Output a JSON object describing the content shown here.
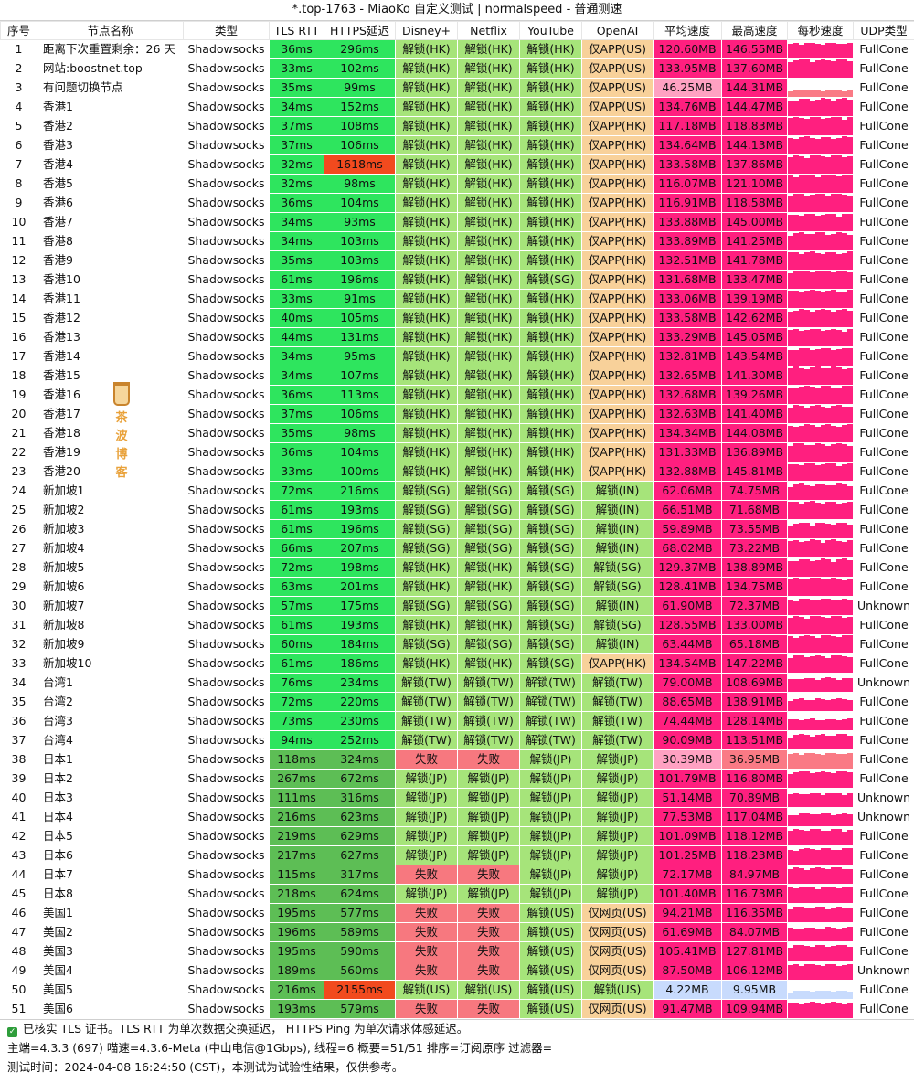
{
  "window": {
    "title": "*.top-1763 - MiaoKo 自定义测试 | normalspeed - 普通测速"
  },
  "watermark": {
    "line1": "茶 波",
    "line2": "博 客"
  },
  "colors": {
    "green": "#2ee55e",
    "green_dark": "#5dbe55",
    "red": "#f24a1e",
    "unlock": "#a6e47a",
    "fail": "#f7787f",
    "app": "#f8d19a",
    "speed": "#ff1f7f",
    "speed_light": "#ffa1c2",
    "speed_low": "#c8dbfd",
    "speed_mid": "#fa7a85",
    "bar": "#ff1f7f",
    "white": "#ffffff"
  },
  "table": {
    "columns": [
      "序号",
      "节点名称",
      "类型",
      "TLS RTT",
      "HTTPS延迟",
      "Disney+",
      "Netflix",
      "YouTube",
      "OpenAI",
      "平均速度",
      "最高速度",
      "每秒速度",
      "UDP类型"
    ],
    "rows": [
      [
        "1",
        "距离下次重置剩余：26 天",
        "Shadowsocks",
        "36ms",
        "296ms",
        "解锁(HK)",
        "解锁(HK)",
        "解锁(HK)",
        "仅APP(US)",
        "120.60MB",
        "146.55MB",
        "",
        "FullCone"
      ],
      [
        "2",
        "网站:boostnet.top",
        "Shadowsocks",
        "33ms",
        "102ms",
        "解锁(HK)",
        "解锁(HK)",
        "解锁(HK)",
        "仅APP(US)",
        "133.95MB",
        "137.60MB",
        "",
        "FullCone"
      ],
      [
        "3",
        "有问题切换节点",
        "Shadowsocks",
        "35ms",
        "99ms",
        "解锁(HK)",
        "解锁(HK)",
        "解锁(HK)",
        "仅APP(US)",
        "46.25MB",
        "144.31MB",
        "",
        "FullCone"
      ],
      [
        "4",
        "香港1",
        "Shadowsocks",
        "34ms",
        "152ms",
        "解锁(HK)",
        "解锁(HK)",
        "解锁(HK)",
        "仅APP(US)",
        "134.76MB",
        "144.47MB",
        "",
        "FullCone"
      ],
      [
        "5",
        "香港2",
        "Shadowsocks",
        "37ms",
        "108ms",
        "解锁(HK)",
        "解锁(HK)",
        "解锁(HK)",
        "仅APP(HK)",
        "117.18MB",
        "118.83MB",
        "",
        "FullCone"
      ],
      [
        "6",
        "香港3",
        "Shadowsocks",
        "37ms",
        "106ms",
        "解锁(HK)",
        "解锁(HK)",
        "解锁(HK)",
        "仅APP(HK)",
        "134.64MB",
        "144.13MB",
        "",
        "FullCone"
      ],
      [
        "7",
        "香港4",
        "Shadowsocks",
        "32ms",
        "1618ms",
        "解锁(HK)",
        "解锁(HK)",
        "解锁(HK)",
        "仅APP(HK)",
        "133.58MB",
        "137.86MB",
        "",
        "FullCone"
      ],
      [
        "8",
        "香港5",
        "Shadowsocks",
        "32ms",
        "98ms",
        "解锁(HK)",
        "解锁(HK)",
        "解锁(HK)",
        "仅APP(HK)",
        "116.07MB",
        "121.10MB",
        "",
        "FullCone"
      ],
      [
        "9",
        "香港6",
        "Shadowsocks",
        "36ms",
        "104ms",
        "解锁(HK)",
        "解锁(HK)",
        "解锁(HK)",
        "仅APP(HK)",
        "116.91MB",
        "118.58MB",
        "",
        "FullCone"
      ],
      [
        "10",
        "香港7",
        "Shadowsocks",
        "34ms",
        "93ms",
        "解锁(HK)",
        "解锁(HK)",
        "解锁(HK)",
        "仅APP(HK)",
        "133.88MB",
        "145.00MB",
        "",
        "FullCone"
      ],
      [
        "11",
        "香港8",
        "Shadowsocks",
        "34ms",
        "103ms",
        "解锁(HK)",
        "解锁(HK)",
        "解锁(HK)",
        "仅APP(HK)",
        "133.89MB",
        "141.25MB",
        "",
        "FullCone"
      ],
      [
        "12",
        "香港9",
        "Shadowsocks",
        "35ms",
        "103ms",
        "解锁(HK)",
        "解锁(HK)",
        "解锁(HK)",
        "仅APP(HK)",
        "132.51MB",
        "141.78MB",
        "",
        "FullCone"
      ],
      [
        "13",
        "香港10",
        "Shadowsocks",
        "61ms",
        "196ms",
        "解锁(HK)",
        "解锁(HK)",
        "解锁(SG)",
        "仅APP(HK)",
        "131.68MB",
        "133.47MB",
        "",
        "FullCone"
      ],
      [
        "14",
        "香港11",
        "Shadowsocks",
        "33ms",
        "91ms",
        "解锁(HK)",
        "解锁(HK)",
        "解锁(HK)",
        "仅APP(HK)",
        "133.06MB",
        "139.19MB",
        "",
        "FullCone"
      ],
      [
        "15",
        "香港12",
        "Shadowsocks",
        "40ms",
        "105ms",
        "解锁(HK)",
        "解锁(HK)",
        "解锁(HK)",
        "仅APP(HK)",
        "133.58MB",
        "142.62MB",
        "",
        "FullCone"
      ],
      [
        "16",
        "香港13",
        "Shadowsocks",
        "44ms",
        "131ms",
        "解锁(HK)",
        "解锁(HK)",
        "解锁(HK)",
        "仅APP(HK)",
        "133.29MB",
        "145.05MB",
        "",
        "FullCone"
      ],
      [
        "17",
        "香港14",
        "Shadowsocks",
        "34ms",
        "95ms",
        "解锁(HK)",
        "解锁(HK)",
        "解锁(HK)",
        "仅APP(HK)",
        "132.81MB",
        "143.54MB",
        "",
        "FullCone"
      ],
      [
        "18",
        "香港15",
        "Shadowsocks",
        "34ms",
        "107ms",
        "解锁(HK)",
        "解锁(HK)",
        "解锁(HK)",
        "仅APP(HK)",
        "132.65MB",
        "141.30MB",
        "",
        "FullCone"
      ],
      [
        "19",
        "香港16",
        "Shadowsocks",
        "36ms",
        "113ms",
        "解锁(HK)",
        "解锁(HK)",
        "解锁(HK)",
        "仅APP(HK)",
        "132.68MB",
        "139.26MB",
        "",
        "FullCone"
      ],
      [
        "20",
        "香港17",
        "Shadowsocks",
        "37ms",
        "106ms",
        "解锁(HK)",
        "解锁(HK)",
        "解锁(HK)",
        "仅APP(HK)",
        "132.63MB",
        "141.40MB",
        "",
        "FullCone"
      ],
      [
        "21",
        "香港18",
        "Shadowsocks",
        "35ms",
        "98ms",
        "解锁(HK)",
        "解锁(HK)",
        "解锁(HK)",
        "仅APP(HK)",
        "134.34MB",
        "144.08MB",
        "",
        "FullCone"
      ],
      [
        "22",
        "香港19",
        "Shadowsocks",
        "36ms",
        "104ms",
        "解锁(HK)",
        "解锁(HK)",
        "解锁(HK)",
        "仅APP(HK)",
        "131.33MB",
        "136.89MB",
        "",
        "FullCone"
      ],
      [
        "23",
        "香港20",
        "Shadowsocks",
        "33ms",
        "100ms",
        "解锁(HK)",
        "解锁(HK)",
        "解锁(HK)",
        "仅APP(HK)",
        "132.88MB",
        "145.81MB",
        "",
        "FullCone"
      ],
      [
        "24",
        "新加坡1",
        "Shadowsocks",
        "72ms",
        "216ms",
        "解锁(SG)",
        "解锁(SG)",
        "解锁(SG)",
        "解锁(IN)",
        "62.06MB",
        "74.75MB",
        "",
        "FullCone"
      ],
      [
        "25",
        "新加坡2",
        "Shadowsocks",
        "61ms",
        "193ms",
        "解锁(SG)",
        "解锁(SG)",
        "解锁(SG)",
        "解锁(IN)",
        "66.51MB",
        "71.68MB",
        "",
        "FullCone"
      ],
      [
        "26",
        "新加坡3",
        "Shadowsocks",
        "61ms",
        "196ms",
        "解锁(SG)",
        "解锁(SG)",
        "解锁(SG)",
        "解锁(IN)",
        "59.89MB",
        "73.55MB",
        "",
        "FullCone"
      ],
      [
        "27",
        "新加坡4",
        "Shadowsocks",
        "66ms",
        "207ms",
        "解锁(SG)",
        "解锁(SG)",
        "解锁(SG)",
        "解锁(IN)",
        "68.02MB",
        "73.22MB",
        "",
        "FullCone"
      ],
      [
        "28",
        "新加坡5",
        "Shadowsocks",
        "72ms",
        "198ms",
        "解锁(HK)",
        "解锁(HK)",
        "解锁(SG)",
        "解锁(SG)",
        "129.37MB",
        "138.89MB",
        "",
        "FullCone"
      ],
      [
        "29",
        "新加坡6",
        "Shadowsocks",
        "63ms",
        "201ms",
        "解锁(HK)",
        "解锁(HK)",
        "解锁(SG)",
        "解锁(SG)",
        "128.41MB",
        "134.75MB",
        "",
        "FullCone"
      ],
      [
        "30",
        "新加坡7",
        "Shadowsocks",
        "57ms",
        "175ms",
        "解锁(SG)",
        "解锁(SG)",
        "解锁(SG)",
        "解锁(IN)",
        "61.90MB",
        "72.37MB",
        "",
        "Unknown"
      ],
      [
        "31",
        "新加坡8",
        "Shadowsocks",
        "61ms",
        "193ms",
        "解锁(HK)",
        "解锁(HK)",
        "解锁(SG)",
        "解锁(SG)",
        "128.55MB",
        "133.00MB",
        "",
        "FullCone"
      ],
      [
        "32",
        "新加坡9",
        "Shadowsocks",
        "60ms",
        "184ms",
        "解锁(SG)",
        "解锁(SG)",
        "解锁(SG)",
        "解锁(IN)",
        "63.44MB",
        "65.18MB",
        "",
        "FullCone"
      ],
      [
        "33",
        "新加坡10",
        "Shadowsocks",
        "61ms",
        "186ms",
        "解锁(HK)",
        "解锁(HK)",
        "解锁(SG)",
        "仅APP(HK)",
        "134.54MB",
        "147.22MB",
        "",
        "FullCone"
      ],
      [
        "34",
        "台湾1",
        "Shadowsocks",
        "76ms",
        "234ms",
        "解锁(TW)",
        "解锁(TW)",
        "解锁(TW)",
        "解锁(TW)",
        "79.00MB",
        "108.69MB",
        "",
        "Unknown"
      ],
      [
        "35",
        "台湾2",
        "Shadowsocks",
        "72ms",
        "220ms",
        "解锁(TW)",
        "解锁(TW)",
        "解锁(TW)",
        "解锁(TW)",
        "88.65MB",
        "138.91MB",
        "",
        "FullCone"
      ],
      [
        "36",
        "台湾3",
        "Shadowsocks",
        "73ms",
        "230ms",
        "解锁(TW)",
        "解锁(TW)",
        "解锁(TW)",
        "解锁(TW)",
        "74.44MB",
        "128.14MB",
        "",
        "FullCone"
      ],
      [
        "37",
        "台湾4",
        "Shadowsocks",
        "94ms",
        "252ms",
        "解锁(TW)",
        "解锁(TW)",
        "解锁(TW)",
        "解锁(TW)",
        "90.09MB",
        "113.51MB",
        "",
        "FullCone"
      ],
      [
        "38",
        "日本1",
        "Shadowsocks",
        "118ms",
        "324ms",
        "失败",
        "失败",
        "解锁(JP)",
        "解锁(JP)",
        "30.39MB",
        "36.95MB",
        "",
        "FullCone"
      ],
      [
        "39",
        "日本2",
        "Shadowsocks",
        "267ms",
        "672ms",
        "解锁(JP)",
        "解锁(JP)",
        "解锁(JP)",
        "解锁(JP)",
        "101.79MB",
        "116.80MB",
        "",
        "FullCone"
      ],
      [
        "40",
        "日本3",
        "Shadowsocks",
        "111ms",
        "316ms",
        "解锁(JP)",
        "解锁(JP)",
        "解锁(JP)",
        "解锁(JP)",
        "51.14MB",
        "70.89MB",
        "",
        "Unknown"
      ],
      [
        "41",
        "日本4",
        "Shadowsocks",
        "216ms",
        "623ms",
        "解锁(JP)",
        "解锁(JP)",
        "解锁(JP)",
        "解锁(JP)",
        "77.53MB",
        "117.04MB",
        "",
        "Unknown"
      ],
      [
        "42",
        "日本5",
        "Shadowsocks",
        "219ms",
        "629ms",
        "解锁(JP)",
        "解锁(JP)",
        "解锁(JP)",
        "解锁(JP)",
        "101.09MB",
        "118.12MB",
        "",
        "FullCone"
      ],
      [
        "43",
        "日本6",
        "Shadowsocks",
        "217ms",
        "627ms",
        "解锁(JP)",
        "解锁(JP)",
        "解锁(JP)",
        "解锁(JP)",
        "101.25MB",
        "118.23MB",
        "",
        "FullCone"
      ],
      [
        "44",
        "日本7",
        "Shadowsocks",
        "115ms",
        "317ms",
        "失败",
        "失败",
        "解锁(JP)",
        "解锁(JP)",
        "72.17MB",
        "84.97MB",
        "",
        "FullCone"
      ],
      [
        "45",
        "日本8",
        "Shadowsocks",
        "218ms",
        "624ms",
        "解锁(JP)",
        "解锁(JP)",
        "解锁(JP)",
        "解锁(JP)",
        "101.40MB",
        "116.73MB",
        "",
        "FullCone"
      ],
      [
        "46",
        "美国1",
        "Shadowsocks",
        "195ms",
        "577ms",
        "失败",
        "失败",
        "解锁(US)",
        "仅网页(US)",
        "94.21MB",
        "116.35MB",
        "",
        "FullCone"
      ],
      [
        "47",
        "美国2",
        "Shadowsocks",
        "196ms",
        "589ms",
        "失败",
        "失败",
        "解锁(US)",
        "仅网页(US)",
        "61.69MB",
        "84.07MB",
        "",
        "FullCone"
      ],
      [
        "48",
        "美国3",
        "Shadowsocks",
        "195ms",
        "590ms",
        "失败",
        "失败",
        "解锁(US)",
        "仅网页(US)",
        "105.41MB",
        "127.81MB",
        "",
        "FullCone"
      ],
      [
        "49",
        "美国4",
        "Shadowsocks",
        "189ms",
        "560ms",
        "失败",
        "失败",
        "解锁(US)",
        "仅网页(US)",
        "87.50MB",
        "106.12MB",
        "",
        "Unknown"
      ],
      [
        "50",
        "美国5",
        "Shadowsocks",
        "216ms",
        "2155ms",
        "解锁(US)",
        "解锁(US)",
        "解锁(US)",
        "解锁(US)",
        "4.22MB",
        "9.95MB",
        "",
        "FullCone"
      ],
      [
        "51",
        "美国6",
        "Shadowsocks",
        "193ms",
        "579ms",
        "失败",
        "失败",
        "解锁(US)",
        "仅网页(US)",
        "91.47MB",
        "109.94MB",
        "",
        "FullCone"
      ]
    ]
  },
  "footer": {
    "line1": "已核实 TLS 证书。TLS RTT 为单次数据交换延迟， HTTPS Ping 为单次请求体感延迟。",
    "line2": "主端=4.3.3 (697) 喵速=4.3.6-Meta (中山电信@1Gbps), 线程=6 概要=51/51 排序=订阅原序 过滤器=",
    "line3": "测试时间：2024-04-08 16:24:50 (CST)，本测试为试验性结果，仅供参考。"
  }
}
